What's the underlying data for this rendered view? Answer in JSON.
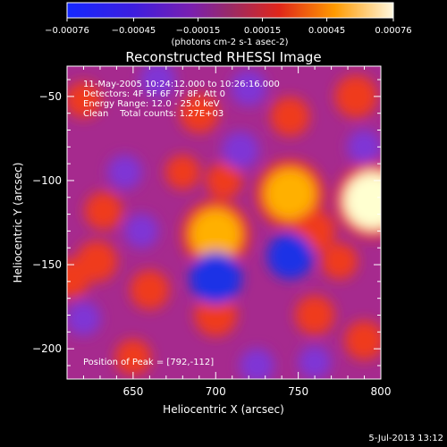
{
  "chart_data": {
    "type": "heatmap",
    "title": "Reconstructed RHESSI Image",
    "info_lines": [
      "11-May-2005 10:24:12.000 to 10:26:16.000",
      "Detectors: 4F 5F 6F 7F 8F, Att 0",
      "Energy Range: 12.0 - 25.0 keV",
      "Clean    Total counts: 1.27E+03"
    ],
    "peak_label": "Position of Peak = [792,-112]",
    "xlabel": "Heliocentric X (arcsec)",
    "ylabel": "Heliocentric Y (arcsec)",
    "xlim": [
      610,
      800
    ],
    "ylim": [
      -218,
      -32
    ],
    "x_ticks": [
      "650",
      "700",
      "750",
      "800"
    ],
    "y_ticks": [
      "-50",
      "-100",
      "-150",
      "-200"
    ],
    "colorbar": {
      "ticks": [
        "-0.00076",
        "-0.00045",
        "-0.00015",
        "0.00015",
        "0.00045",
        "0.00076"
      ],
      "unit_label": "(photons cm-2 s-1 asec-2)",
      "range": [
        -0.00076,
        0.00076
      ]
    },
    "colors": {
      "negative": "#1e32e6",
      "mid_low": "#7f34d6",
      "mid": "#a62a8e",
      "mid_high": "#ef3a1c",
      "high": "#ffb000",
      "peak": "#ffffd0"
    },
    "blobs": [
      {
        "x": 795,
        "y": -112,
        "v": 1.0
      },
      {
        "x": 745,
        "y": -108,
        "v": 0.8
      },
      {
        "x": 700,
        "y": -132,
        "v": 0.8
      },
      {
        "x": 690,
        "y": -60,
        "v": 0.45
      },
      {
        "x": 745,
        "y": -62,
        "v": 0.45
      },
      {
        "x": 785,
        "y": -50,
        "v": 0.55
      },
      {
        "x": 628,
        "y": -148,
        "v": 0.5
      },
      {
        "x": 632,
        "y": -118,
        "v": 0.4
      },
      {
        "x": 612,
        "y": -158,
        "v": 0.45
      },
      {
        "x": 660,
        "y": -165,
        "v": 0.45
      },
      {
        "x": 700,
        "y": -180,
        "v": 0.55
      },
      {
        "x": 760,
        "y": -180,
        "v": 0.45
      },
      {
        "x": 790,
        "y": -195,
        "v": 0.45
      },
      {
        "x": 775,
        "y": -148,
        "v": 0.35
      },
      {
        "x": 650,
        "y": -205,
        "v": 0.35
      },
      {
        "x": 620,
        "y": -52,
        "v": 0.35
      },
      {
        "x": 705,
        "y": -100,
        "v": 0.35
      },
      {
        "x": 760,
        "y": -130,
        "v": 0.5
      },
      {
        "x": 680,
        "y": -95,
        "v": 0.3
      },
      {
        "x": 665,
        "y": -40,
        "v": -0.35
      },
      {
        "x": 715,
        "y": -82,
        "v": -0.4
      },
      {
        "x": 700,
        "y": -158,
        "v": -0.85
      },
      {
        "x": 745,
        "y": -145,
        "v": -0.65
      },
      {
        "x": 720,
        "y": -45,
        "v": -0.35
      },
      {
        "x": 645,
        "y": -95,
        "v": -0.3
      },
      {
        "x": 725,
        "y": -210,
        "v": -0.3
      },
      {
        "x": 620,
        "y": -182,
        "v": -0.3
      },
      {
        "x": 790,
        "y": -80,
        "v": -0.3
      },
      {
        "x": 655,
        "y": -130,
        "v": -0.3
      },
      {
        "x": 760,
        "y": -208,
        "v": -0.25
      }
    ]
  },
  "timestamp": "5-Jul-2013 13:12"
}
